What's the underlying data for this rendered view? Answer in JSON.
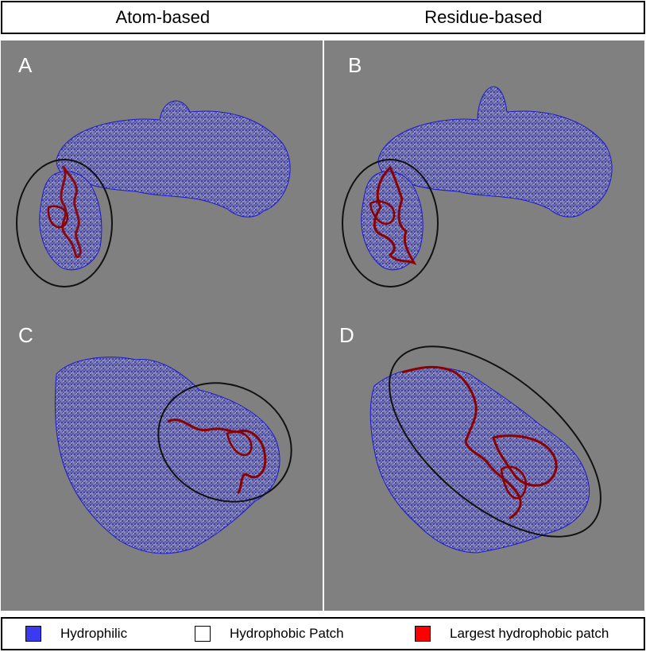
{
  "header": {
    "left_title": "Atom-based",
    "right_title": "Residue-based"
  },
  "panels": {
    "a_label": "A",
    "b_label": "B",
    "c_label": "C",
    "d_label": "D"
  },
  "legend": {
    "items": [
      {
        "label": "Hydrophilic",
        "color": "#3a3af0"
      },
      {
        "label": "Hydrophobic Patch",
        "color": "#ffffff"
      },
      {
        "label": "Largest hydrophobic patch",
        "color": "#ff0000"
      }
    ]
  },
  "colors": {
    "background": "#808080",
    "hydrophilic": "#1a1ad0",
    "hydrophobic": "#e8e8e8",
    "largest_patch": "#8b0000"
  }
}
